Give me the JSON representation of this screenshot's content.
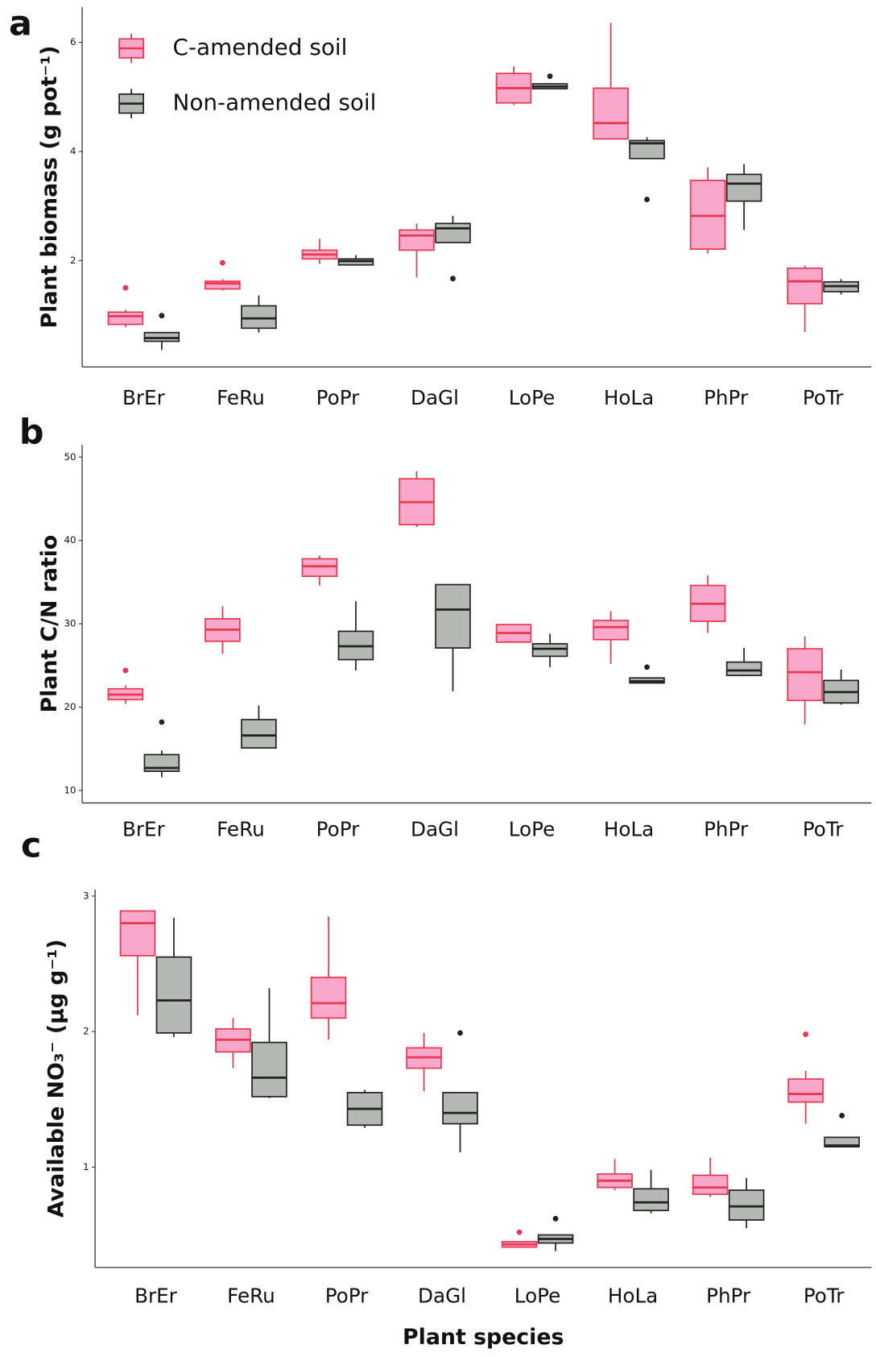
{
  "chart_data": [
    {
      "type": "box",
      "panel": "a",
      "ylabel": "Plant biomass (g pot⁻¹)",
      "legend": "upper left",
      "categories": [
        "BrEr",
        "FeRu",
        "PoPr",
        "DaGl",
        "LoPe",
        "HoLa",
        "PhPr",
        "PoTr"
      ],
      "ylim": [
        0.05,
        6.65
      ],
      "yticks": [
        2,
        4,
        6
      ],
      "series": [
        {
          "name": "C-amended soil",
          "color": "#e8384f",
          "fill": "#f9a8cc",
          "stats": [
            {
              "whislo": 0.78,
              "q1": 0.83,
              "med": 0.98,
              "q3": 1.055,
              "whishi": 1.1,
              "fliers": [
                1.5
              ]
            },
            {
              "whislo": 1.45,
              "q1": 1.48,
              "med": 1.58,
              "q3": 1.62,
              "whishi": 1.66,
              "fliers": [
                1.96
              ]
            },
            {
              "whislo": 1.94,
              "q1": 2.03,
              "med": 2.11,
              "q3": 2.19,
              "whishi": 2.4,
              "fliers": []
            },
            {
              "whislo": 1.69,
              "q1": 2.19,
              "med": 2.46,
              "q3": 2.56,
              "whishi": 2.68,
              "fliers": []
            },
            {
              "whislo": 4.85,
              "q1": 4.89,
              "med": 5.16,
              "q3": 5.43,
              "whishi": 5.56,
              "fliers": []
            },
            {
              "whislo": 4.23,
              "q1": 4.23,
              "med": 4.52,
              "q3": 5.16,
              "whishi": 6.36,
              "fliers": []
            },
            {
              "whislo": 2.13,
              "q1": 2.21,
              "med": 2.82,
              "q3": 3.47,
              "whishi": 3.71,
              "fliers": []
            },
            {
              "whislo": 0.69,
              "q1": 1.21,
              "med": 1.62,
              "q3": 1.86,
              "whishi": 1.91,
              "fliers": []
            }
          ]
        },
        {
          "name": "Non-amended soil",
          "color": "#222222",
          "fill": "#b5b9b4",
          "stats": [
            {
              "whislo": 0.36,
              "q1": 0.52,
              "med": 0.58,
              "q3": 0.68,
              "whishi": 0.69,
              "fliers": [
                0.99
              ]
            },
            {
              "whislo": 0.68,
              "q1": 0.76,
              "med": 0.94,
              "q3": 1.17,
              "whishi": 1.36,
              "fliers": []
            },
            {
              "whislo": 1.92,
              "q1": 1.92,
              "med": 1.99,
              "q3": 2.03,
              "whishi": 2.1,
              "fliers": []
            },
            {
              "whislo": 2.33,
              "q1": 2.33,
              "med": 2.59,
              "q3": 2.68,
              "whishi": 2.82,
              "fliers": [
                1.67
              ]
            },
            {
              "whislo": 5.15,
              "q1": 5.15,
              "med": 5.19,
              "q3": 5.24,
              "whishi": 5.24,
              "fliers": [
                5.38
              ]
            },
            {
              "whislo": 3.87,
              "q1": 3.87,
              "med": 4.15,
              "q3": 4.2,
              "whishi": 4.26,
              "fliers": [
                3.12
              ]
            },
            {
              "whislo": 2.56,
              "q1": 3.09,
              "med": 3.41,
              "q3": 3.58,
              "whishi": 3.77,
              "fliers": []
            },
            {
              "whislo": 1.38,
              "q1": 1.43,
              "med": 1.53,
              "q3": 1.61,
              "whishi": 1.66,
              "fliers": []
            }
          ]
        }
      ]
    },
    {
      "type": "box",
      "panel": "b",
      "ylabel": "Plant C/N ratio",
      "categories": [
        "BrEr",
        "FeRu",
        "PoPr",
        "DaGl",
        "LoPe",
        "HoLa",
        "PhPr",
        "PoTr"
      ],
      "ylim": [
        8.5,
        51.5
      ],
      "yticks": [
        10,
        20,
        30,
        40,
        50
      ],
      "series": [
        {
          "color": "#e8384f",
          "fill": "#f9a8cc",
          "stats": [
            {
              "whislo": 20.4,
              "q1": 20.9,
              "med": 21.5,
              "q3": 22.2,
              "whishi": 22.6,
              "fliers": [
                24.4
              ]
            },
            {
              "whislo": 26.4,
              "q1": 27.9,
              "med": 29.3,
              "q3": 30.6,
              "whishi": 32.1,
              "fliers": []
            },
            {
              "whislo": 34.6,
              "q1": 35.7,
              "med": 36.9,
              "q3": 37.8,
              "whishi": 38.2,
              "fliers": []
            },
            {
              "whislo": 41.6,
              "q1": 41.9,
              "med": 44.6,
              "q3": 47.4,
              "whishi": 48.3,
              "fliers": []
            },
            {
              "whislo": 27.8,
              "q1": 27.8,
              "med": 28.9,
              "q3": 29.9,
              "whishi": 29.9,
              "fliers": []
            },
            {
              "whislo": 25.2,
              "q1": 28.1,
              "med": 29.6,
              "q3": 30.4,
              "whishi": 31.5,
              "fliers": []
            },
            {
              "whislo": 28.9,
              "q1": 30.3,
              "med": 32.4,
              "q3": 34.6,
              "whishi": 35.8,
              "fliers": []
            },
            {
              "whislo": 17.9,
              "q1": 20.8,
              "med": 24.2,
              "q3": 27.0,
              "whishi": 28.5,
              "fliers": []
            }
          ]
        },
        {
          "color": "#222222",
          "fill": "#b5b9b4",
          "stats": [
            {
              "whislo": 11.6,
              "q1": 12.3,
              "med": 12.7,
              "q3": 14.3,
              "whishi": 14.8,
              "fliers": [
                18.2
              ]
            },
            {
              "whislo": 15.1,
              "q1": 15.1,
              "med": 16.6,
              "q3": 18.5,
              "whishi": 20.2,
              "fliers": []
            },
            {
              "whislo": 24.4,
              "q1": 25.7,
              "med": 27.3,
              "q3": 29.1,
              "whishi": 32.7,
              "fliers": []
            },
            {
              "whislo": 21.9,
              "q1": 27.1,
              "med": 31.7,
              "q3": 34.7,
              "whishi": 34.7,
              "fliers": []
            },
            {
              "whislo": 24.8,
              "q1": 26.1,
              "med": 27.0,
              "q3": 27.6,
              "whishi": 28.8,
              "fliers": []
            },
            {
              "whislo": 22.9,
              "q1": 22.9,
              "med": 23.1,
              "q3": 23.5,
              "whishi": 23.5,
              "fliers": [
                24.8
              ]
            },
            {
              "whislo": 23.7,
              "q1": 23.8,
              "med": 24.4,
              "q3": 25.4,
              "whishi": 27.1,
              "fliers": []
            },
            {
              "whislo": 20.3,
              "q1": 20.5,
              "med": 21.8,
              "q3": 23.2,
              "whishi": 24.5,
              "fliers": []
            }
          ]
        }
      ]
    },
    {
      "type": "box",
      "panel": "c",
      "ylabel": "Available NO₃⁻ (µg g⁻¹)",
      "xlabel": "Plant species",
      "categories": [
        "BrEr",
        "FeRu",
        "PoPr",
        "DaGl",
        "LoPe",
        "HoLa",
        "PhPr",
        "PoTr"
      ],
      "ylim": [
        0.26,
        3.05
      ],
      "yticks": [
        1,
        2,
        3
      ],
      "series": [
        {
          "color": "#e8384f",
          "fill": "#f9a8cc",
          "stats": [
            {
              "whislo": 2.12,
              "q1": 2.56,
              "med": 2.8,
              "q3": 2.89,
              "whishi": 2.89,
              "fliers": []
            },
            {
              "whislo": 1.73,
              "q1": 1.85,
              "med": 1.94,
              "q3": 2.02,
              "whishi": 2.1,
              "fliers": []
            },
            {
              "whislo": 1.94,
              "q1": 2.1,
              "med": 2.21,
              "q3": 2.4,
              "whishi": 2.85,
              "fliers": []
            },
            {
              "whislo": 1.56,
              "q1": 1.73,
              "med": 1.81,
              "q3": 1.88,
              "whishi": 1.99,
              "fliers": []
            },
            {
              "whislo": 0.41,
              "q1": 0.41,
              "med": 0.43,
              "q3": 0.45,
              "whishi": 0.45,
              "fliers": [
                0.52
              ]
            },
            {
              "whislo": 0.83,
              "q1": 0.85,
              "med": 0.9,
              "q3": 0.95,
              "whishi": 1.06,
              "fliers": []
            },
            {
              "whislo": 0.78,
              "q1": 0.8,
              "med": 0.85,
              "q3": 0.94,
              "whishi": 1.07,
              "fliers": []
            },
            {
              "whislo": 1.32,
              "q1": 1.48,
              "med": 1.54,
              "q3": 1.65,
              "whishi": 1.71,
              "fliers": [
                1.98
              ]
            }
          ]
        },
        {
          "color": "#222222",
          "fill": "#b5b9b4",
          "stats": [
            {
              "whislo": 1.96,
              "q1": 1.99,
              "med": 2.23,
              "q3": 2.55,
              "whishi": 2.84,
              "fliers": []
            },
            {
              "whislo": 1.51,
              "q1": 1.52,
              "med": 1.66,
              "q3": 1.92,
              "whishi": 2.32,
              "fliers": []
            },
            {
              "whislo": 1.29,
              "q1": 1.31,
              "med": 1.43,
              "q3": 1.55,
              "whishi": 1.57,
              "fliers": []
            },
            {
              "whislo": 1.11,
              "q1": 1.32,
              "med": 1.4,
              "q3": 1.55,
              "whishi": 1.55,
              "fliers": [
                1.99
              ]
            },
            {
              "whislo": 0.38,
              "q1": 0.44,
              "med": 0.47,
              "q3": 0.5,
              "whishi": 0.5,
              "fliers": [
                0.62
              ]
            },
            {
              "whislo": 0.66,
              "q1": 0.68,
              "med": 0.74,
              "q3": 0.84,
              "whishi": 0.98,
              "fliers": []
            },
            {
              "whislo": 0.55,
              "q1": 0.61,
              "med": 0.71,
              "q3": 0.83,
              "whishi": 0.92,
              "fliers": []
            },
            {
              "whislo": 1.15,
              "q1": 1.15,
              "med": 1.16,
              "q3": 1.22,
              "whishi": 1.22,
              "fliers": [
                1.38
              ]
            }
          ]
        }
      ]
    }
  ]
}
